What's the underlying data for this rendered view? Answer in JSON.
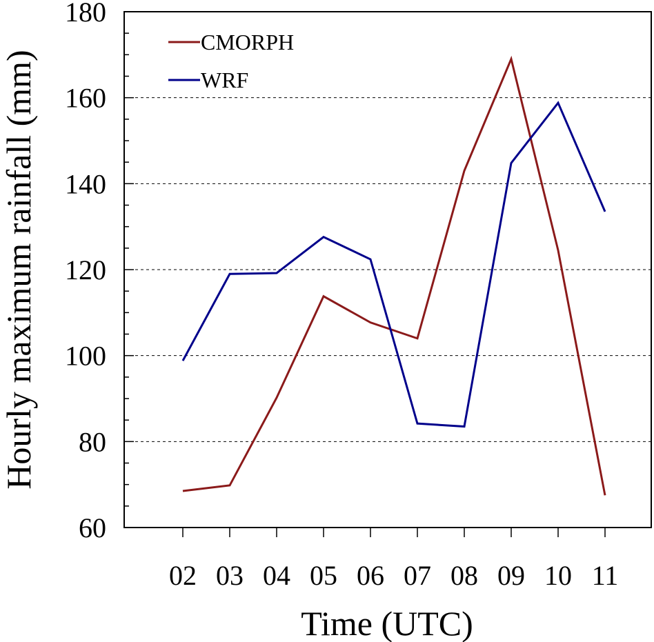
{
  "chart_data": {
    "type": "line",
    "categories": [
      "02",
      "03",
      "04",
      "05",
      "06",
      "07",
      "08",
      "09",
      "10",
      "11"
    ],
    "series": [
      {
        "name": "CMORPH",
        "color": "#8b1a1a",
        "values": [
          68.5,
          69.8,
          90.2,
          113.8,
          107.7,
          104.0,
          143.0,
          169.0,
          124.5,
          67.5
        ]
      },
      {
        "name": "WRF",
        "color": "#00008b",
        "values": [
          98.8,
          119.0,
          119.2,
          127.6,
          122.4,
          84.2,
          83.5,
          144.8,
          158.8,
          133.5
        ]
      }
    ],
    "xlabel": "Time (UTC)",
    "ylabel": "Hourly maximum rainfall (mm)",
    "ylim": [
      60,
      180
    ],
    "yticks": [
      60,
      80,
      100,
      120,
      140,
      160,
      180
    ],
    "grid": "horizontal dashed at major y ticks",
    "legend_position": "top-left"
  }
}
